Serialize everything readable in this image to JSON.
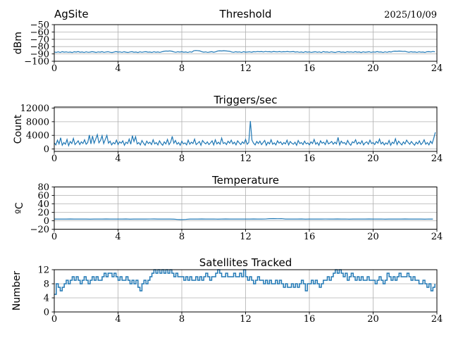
{
  "figure": {
    "site_label": "AgSite",
    "date_label": "2025/10/09"
  },
  "chart_data": [
    {
      "id": "threshold",
      "type": "line",
      "title_left": "AgSite",
      "title": "Threshold",
      "title_right": "2025/10/09",
      "ylabel": "dBm",
      "xlim": [
        0,
        24
      ],
      "ylim": [
        -100,
        -50
      ],
      "xticks": [
        0,
        4,
        8,
        12,
        16,
        20,
        24
      ],
      "yticks": [
        -50,
        -60,
        -70,
        -80,
        -90,
        -100
      ],
      "grid": true,
      "legend": "none",
      "line_color": "#1f77b4",
      "x0": 0,
      "dx": 0.125,
      "values": [
        -87.3,
        -87.9,
        -87.1,
        -88.0,
        -86.9,
        -87.6,
        -87.2,
        -87.8,
        -87.4,
        -88.1,
        -87.0,
        -87.5,
        -86.8,
        -87.7,
        -87.3,
        -88.0,
        -87.1,
        -87.8,
        -87.5,
        -86.9,
        -87.4,
        -88.0,
        -87.2,
        -87.6,
        -86.9,
        -87.9,
        -87.3,
        -87.0,
        -87.7,
        -88.1,
        -87.4,
        -86.8,
        -87.5,
        -87.2,
        -87.9,
        -87.0,
        -87.6,
        -88.0,
        -87.3,
        -86.9,
        -87.7,
        -87.4,
        -88.1,
        -87.1,
        -87.8,
        -87.2,
        -86.9,
        -87.6,
        -87.4,
        -88.0,
        -87.0,
        -87.7,
        -87.3,
        -87.9,
        -87.1,
        -86.4,
        -86.0,
        -86.2,
        -85.9,
        -86.3,
        -87.2,
        -87.8,
        -87.0,
        -87.5,
        -86.9,
        -87.7,
        -87.3,
        -88.0,
        -87.1,
        -87.6,
        -85.6,
        -85.3,
        -85.5,
        -85.8,
        -87.0,
        -87.6,
        -87.2,
        -87.9,
        -87.4,
        -86.9,
        -87.7,
        -87.1,
        -86.0,
        -85.7,
        -85.9,
        -85.6,
        -85.8,
        -86.1,
        -86.4,
        -87.3,
        -87.8,
        -87.0,
        -87.5,
        -87.2,
        -88.0,
        -86.9,
        -87.6,
        -87.4,
        -87.1,
        -87.7,
        -86.9,
        -87.2,
        -86.7,
        -87.0,
        -86.8,
        -87.3,
        -86.6,
        -87.1,
        -86.9,
        -87.4,
        -86.7,
        -87.0,
        -87.2,
        -86.8,
        -87.3,
        -86.9,
        -87.1,
        -86.7,
        -87.2,
        -87.0,
        -86.8,
        -87.5,
        -87.1,
        -87.8,
        -87.3,
        -88.0,
        -86.9,
        -87.6,
        -87.2,
        -87.9,
        -87.4,
        -87.0,
        -87.7,
        -87.2,
        -88.1,
        -86.8,
        -87.5,
        -87.3,
        -87.9,
        -87.1,
        -87.6,
        -88.0,
        -87.2,
        -86.9,
        -87.7,
        -87.4,
        -88.0,
        -87.0,
        -87.5,
        -87.2,
        -87.8,
        -86.9,
        -87.6,
        -87.3,
        -88.1,
        -87.1,
        -87.7,
        -87.4,
        -87.0,
        -87.9,
        -87.2,
        -87.6,
        -86.8,
        -87.5,
        -87.3,
        -88.0,
        -87.1,
        -87.8,
        -86.9,
        -87.4,
        -86.5,
        -86.2,
        -86.4,
        -86.1,
        -86.3,
        -86.6,
        -86.4,
        -87.2,
        -87.7,
        -87.0,
        -87.5,
        -87.3,
        -87.9,
        -87.1,
        -87.6,
        -87.4,
        -88.0,
        -87.0,
        -86.9,
        -87.3,
        -86.6,
        -87.1
      ]
    },
    {
      "id": "triggers",
      "type": "line",
      "title": "Triggers/sec",
      "ylabel": "Count",
      "xlim": [
        0,
        24
      ],
      "ylim": [
        -700,
        12300
      ],
      "xticks": [
        0,
        4,
        8,
        12,
        16,
        20,
        24
      ],
      "yticks": [
        0,
        4000,
        8000,
        12000
      ],
      "grid": true,
      "line_color": "#1f77b4",
      "x0": 0,
      "dx": 0.1,
      "values": [
        1800,
        1200,
        2600,
        1500,
        3300,
        1100,
        1900,
        1400,
        2800,
        1000,
        2200,
        1600,
        3100,
        1300,
        1800,
        2400,
        1300,
        2100,
        1600,
        2700,
        1400,
        1900,
        4100,
        1500,
        3800,
        1700,
        2900,
        4200,
        1800,
        2500,
        3900,
        1600,
        2800,
        4000,
        1700,
        2300,
        1200,
        1900,
        1500,
        2600,
        1300,
        2100,
        1700,
        2400,
        1100,
        2000,
        1600,
        2900,
        1400,
        3900,
        2200,
        3600,
        1500,
        1900,
        1200,
        2500,
        1700,
        1100,
        2300,
        1600,
        2000,
        1300,
        2700,
        1500,
        1900,
        1200,
        2400,
        1600,
        1100,
        2100,
        1500,
        2800,
        1300,
        2000,
        3700,
        1700,
        2500,
        1400,
        1900,
        1100,
        2300,
        1500,
        1800,
        1200,
        2600,
        1400,
        2000,
        1600,
        2900,
        1300,
        1700,
        2200,
        1100,
        2500,
        1900,
        1500,
        2100,
        1300,
        1800,
        2400,
        1200,
        2700,
        1500,
        2000,
        1400,
        3200,
        1600,
        1900,
        1300,
        2300,
        1700,
        2600,
        1500,
        2000,
        1200,
        2400,
        1800,
        1300,
        2100,
        1600,
        2800,
        1400,
        1900,
        8200,
        2600,
        1700,
        1200,
        2200,
        1600,
        2300,
        1300,
        1900,
        2500,
        1100,
        2000,
        1500,
        2700,
        1400,
        1800,
        1200,
        2400,
        1700,
        2100,
        1300,
        1900,
        1500,
        2600,
        1200,
        2200,
        1700,
        1400,
        2000,
        1100,
        2500,
        1600,
        1900,
        1300,
        2300,
        1500,
        1800,
        1200,
        2100,
        1600,
        2800,
        1400,
        1900,
        1100,
        2400,
        1700,
        2000,
        1300,
        2600,
        1500,
        1800,
        2200,
        1400,
        2000,
        1500,
        3400,
        1200,
        2300,
        1700,
        1900,
        1300,
        2500,
        1600,
        1100,
        2100,
        1800,
        2700,
        1400,
        2000,
        1500,
        2400,
        1200,
        1800,
        2100,
        1400,
        2600,
        1600,
        1900,
        1300,
        2200,
        1700,
        2900,
        1500,
        2000,
        1200,
        1800,
        1400,
        2500,
        1100,
        2000,
        1600,
        3000,
        1300,
        2300,
        1700,
        1200,
        2100,
        1500,
        2600,
        1900,
        1400,
        2200,
        1600,
        1100,
        2000,
        1500,
        2400,
        1300,
        1800,
        2700,
        1400,
        1900,
        1200,
        2300,
        1600,
        3100,
        4900
      ]
    },
    {
      "id": "temperature",
      "type": "line",
      "title": "Temperature",
      "ylabel": "ºC",
      "xlim": [
        0,
        24
      ],
      "ylim": [
        -20,
        80
      ],
      "xticks": [
        0,
        4,
        8,
        12,
        16,
        20,
        24
      ],
      "yticks": [
        -20,
        0,
        20,
        40,
        60,
        80
      ],
      "grid": true,
      "line_color": "#1f77b4",
      "x0": 0,
      "dx": 0.25,
      "values": [
        4.0,
        4.1,
        3.9,
        4.0,
        4.2,
        4.0,
        3.9,
        4.1,
        4.0,
        3.8,
        4.0,
        4.1,
        3.9,
        4.2,
        4.0,
        4.1,
        3.9,
        4.0,
        4.2,
        3.8,
        4.0,
        4.1,
        3.9,
        4.0,
        4.1,
        4.2,
        4.0,
        3.9,
        4.1,
        4.0,
        3.8,
        3.0,
        2.8,
        3.2,
        3.9,
        4.1,
        4.0,
        4.2,
        3.9,
        4.0,
        4.1,
        3.8,
        4.0,
        4.2,
        3.9,
        4.1,
        4.0,
        3.9,
        4.1,
        4.0,
        4.2,
        3.9,
        4.0,
        4.1,
        4.8,
        5.0,
        4.7,
        4.9,
        4.0,
        4.1,
        3.9,
        4.0,
        4.2,
        3.8,
        4.0,
        4.1,
        3.9,
        4.0,
        4.1,
        4.0,
        3.9,
        4.2,
        4.0,
        4.1,
        3.8,
        4.0,
        3.9,
        4.1,
        4.0,
        4.2,
        3.9,
        4.0,
        4.1,
        3.8,
        4.0,
        4.1,
        3.9,
        4.0,
        4.2,
        4.0,
        3.9,
        4.1,
        4.0,
        3.8,
        4.1,
        4.0
      ]
    },
    {
      "id": "satellites",
      "type": "line",
      "draw": "step",
      "title": "Satellites Tracked",
      "ylabel": "Number",
      "xlim": [
        0,
        24
      ],
      "ylim": [
        0,
        12
      ],
      "xticks": [
        0,
        4,
        8,
        12,
        16,
        20,
        24
      ],
      "yticks": [
        0,
        4,
        8,
        12
      ],
      "grid": true,
      "line_color": "#1f77b4",
      "x0": 0,
      "dx": 0.125,
      "values": [
        5,
        8,
        7,
        6,
        7,
        8,
        9,
        8,
        9,
        10,
        9,
        10,
        9,
        8,
        9,
        10,
        9,
        8,
        9,
        10,
        9,
        10,
        9,
        9,
        10,
        11,
        10,
        11,
        11,
        10,
        11,
        10,
        9,
        10,
        9,
        9,
        10,
        9,
        8,
        9,
        8,
        9,
        7,
        6,
        8,
        9,
        8,
        9,
        10,
        11,
        12,
        11,
        12,
        11,
        12,
        11,
        12,
        11,
        12,
        11,
        10,
        11,
        10,
        10,
        10,
        9,
        10,
        9,
        10,
        9,
        9,
        10,
        9,
        10,
        9,
        10,
        11,
        10,
        9,
        10,
        10,
        11,
        12,
        11,
        10,
        10,
        11,
        10,
        10,
        10,
        11,
        10,
        10,
        11,
        10,
        12,
        10,
        9,
        10,
        9,
        8,
        9,
        10,
        9,
        9,
        8,
        9,
        8,
        9,
        8,
        8,
        9,
        8,
        9,
        8,
        7,
        8,
        7,
        7,
        8,
        7,
        8,
        7,
        8,
        9,
        8,
        6,
        8,
        8,
        9,
        8,
        9,
        8,
        7,
        8,
        9,
        9,
        10,
        9,
        10,
        11,
        12,
        11,
        12,
        11,
        10,
        11,
        9,
        10,
        11,
        10,
        9,
        10,
        9,
        10,
        9,
        9,
        10,
        9,
        9,
        9,
        8,
        9,
        10,
        9,
        8,
        9,
        11,
        10,
        9,
        10,
        9,
        10,
        11,
        10,
        10,
        10,
        11,
        10,
        9,
        10,
        9,
        9,
        8,
        8,
        9,
        8,
        7,
        8,
        6,
        7,
        8
      ]
    }
  ]
}
